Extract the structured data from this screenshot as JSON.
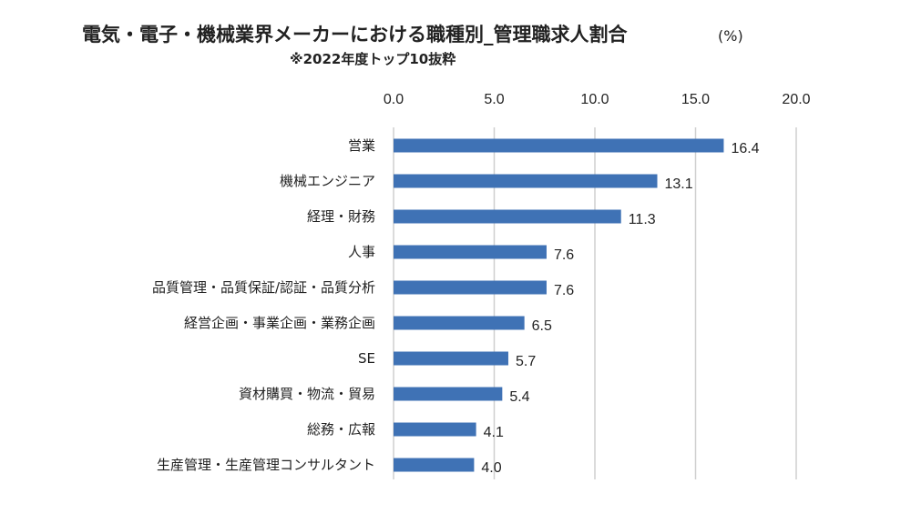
{
  "title": "電気・電子・機械業界メーカーにおける職種別_管理職求人割合",
  "subtitle": "※2022年度トップ10抜粋",
  "unit": "(%)",
  "colors": {
    "bar": "#3f72b5",
    "grid": "#cfcfcf"
  },
  "chart_data": {
    "type": "bar",
    "orientation": "horizontal",
    "categories": [
      "営業",
      "機械エンジニア",
      "経理・財務",
      "人事",
      "品質管理・品質保証/認証・品質分析",
      "経営企画・事業企画・業務企画",
      "SE",
      "資材購買・物流・貿易",
      "総務・広報",
      "生産管理・生産管理コンサルタント"
    ],
    "values": [
      16.4,
      13.1,
      11.3,
      7.6,
      7.6,
      6.5,
      5.7,
      5.4,
      4.1,
      4.0
    ],
    "value_labels": [
      "16.4",
      "13.1",
      "11.3",
      "7.6",
      "7.6",
      "6.5",
      "5.7",
      "5.4",
      "4.1",
      "4.0"
    ],
    "xlim": [
      0,
      20
    ],
    "ticks": [
      "0.0",
      "5.0",
      "10.0",
      "15.0",
      "20.0"
    ],
    "tick_values": [
      0,
      5,
      10,
      15,
      20
    ],
    "grid": true,
    "axis_position": "top"
  }
}
